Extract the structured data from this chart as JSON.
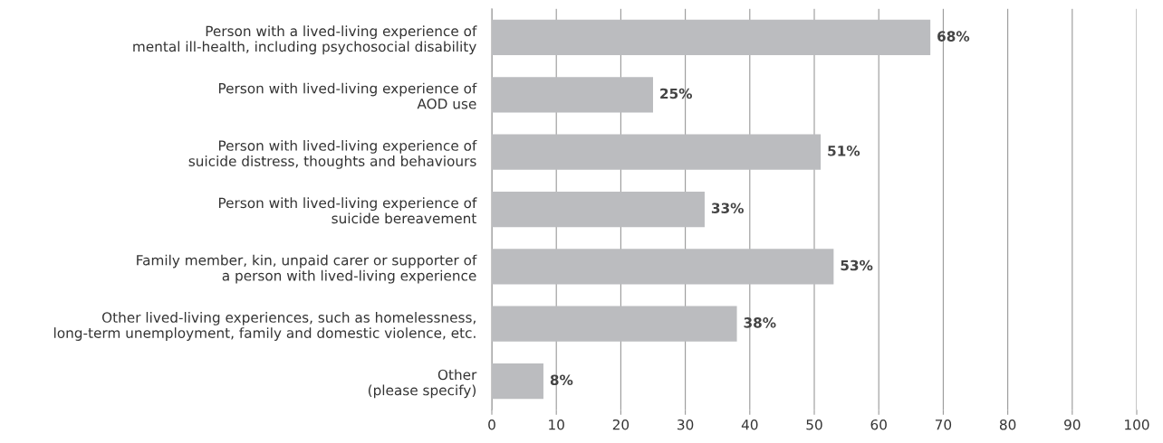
{
  "chart_data": {
    "type": "bar",
    "orientation": "horizontal",
    "categories": [
      "Person with a lived-living experience of\nmental ill-health, including psychosocial disability",
      "Person with lived-living experience of\nAOD use",
      "Person with lived-living experience of\nsuicide distress, thoughts and behaviours",
      "Person with lived-living experience of\nsuicide bereavement",
      "Family member, kin, unpaid carer or supporter of\na person with lived-living experience",
      "Other lived-living experiences, such as homelessness,\nlong-term unemployment, family and domestic violence, etc.",
      "Other\n(please specify)"
    ],
    "values": [
      68,
      25,
      51,
      33,
      53,
      38,
      8
    ],
    "value_labels": [
      "68%",
      "25%",
      "51%",
      "33%",
      "53%",
      "38%",
      "8%"
    ],
    "color": "#bbbcbf",
    "xlim": [
      0,
      100
    ],
    "xticks": [
      0,
      10,
      20,
      30,
      40,
      50,
      60,
      70,
      80,
      90,
      100
    ],
    "grid": "x",
    "legend": false
  }
}
